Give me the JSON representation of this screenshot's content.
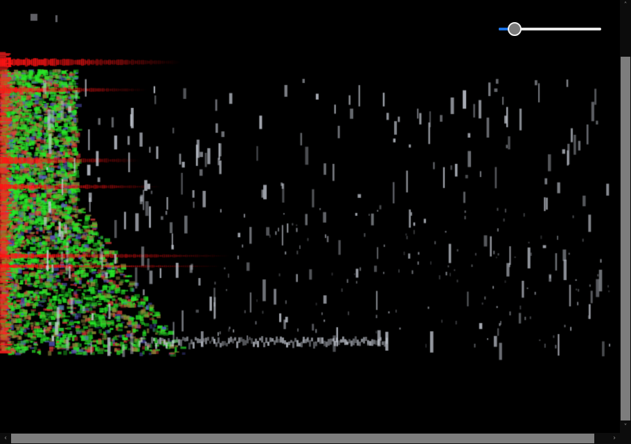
{
  "viewer": {
    "zoom_slider": {
      "value": 0.1,
      "min": 0,
      "max": 1
    },
    "colors": {
      "accent": "#1a73e8",
      "thumb": "#7a7a7a",
      "track": "#e9e9e9",
      "scrollbar_thumb": "#7d7d7d",
      "red_channel": "#ff1a1a",
      "green_channel": "#1aff1a",
      "blue_channel": "#2a3cff",
      "white_channel": "#c8ccd6"
    }
  },
  "scrollbars": {
    "up_icon": "chevron-up-icon",
    "down_icon": "chevron-down-icon",
    "left_icon": "chevron-left-icon",
    "right_icon": "chevron-right-icon"
  }
}
